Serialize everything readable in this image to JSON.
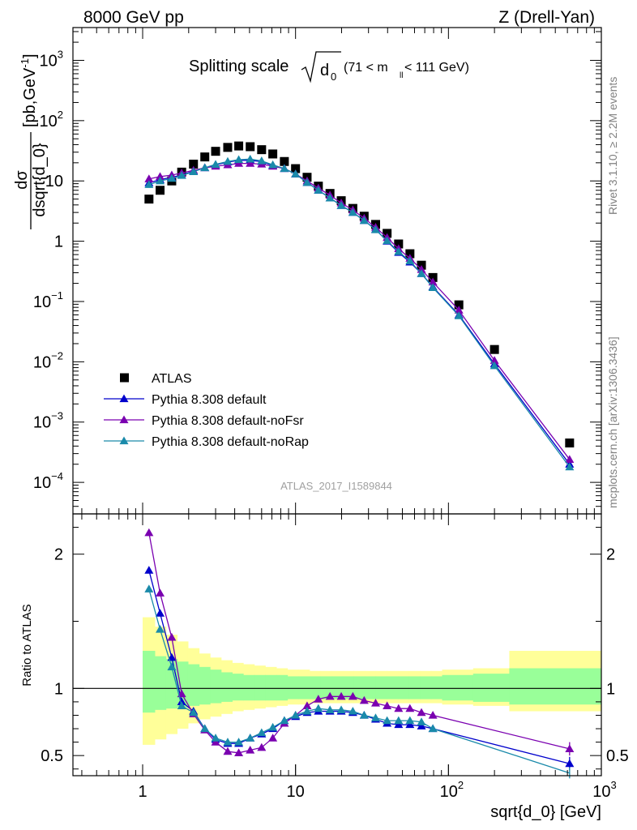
{
  "header": {
    "left": "8000 GeV pp",
    "right": "Z (Drell-Yan)"
  },
  "side_labels": {
    "rivet": "Rivet 3.1.10, ≥ 2.2M events",
    "mcplots": "mcplots.cern.ch [arXiv:1306.3436]"
  },
  "chart_data": [
    {
      "type": "scatter",
      "panel": "main",
      "title_main": "Splitting scale",
      "title_sym": "d",
      "title_sub": "0",
      "title_range_pre": "(71 < m",
      "title_range_sub": "ll",
      "title_range_post": " < 111 GeV)",
      "watermark": "ATLAS_2017_I1589844",
      "xscale": "log",
      "yscale": "log",
      "xlim": [
        0.35,
        1000
      ],
      "ylim": [
        3e-05,
        3500
      ],
      "ylabel_num": "dσ",
      "ylabel_den": "dsqrt{d_0}",
      "ylabel_unit": "[pb,GeV",
      "ylabel_unit_exp": "-1",
      "ylabel_unit_close": "]",
      "y_ticks": [
        {
          "v": 0.0001,
          "mant": "10",
          "exp": "−4"
        },
        {
          "v": 0.001,
          "mant": "10",
          "exp": "−3"
        },
        {
          "v": 0.01,
          "mant": "10",
          "exp": "−2"
        },
        {
          "v": 0.1,
          "mant": "10",
          "exp": "−1"
        },
        {
          "v": 1,
          "mant": "1",
          "exp": ""
        },
        {
          "v": 10,
          "mant": "10",
          "exp": ""
        },
        {
          "v": 100,
          "mant": "10",
          "exp": "2"
        },
        {
          "v": 1000,
          "mant": "10",
          "exp": "3"
        }
      ],
      "legend_position": "bottom-left",
      "x": [
        1.1,
        1.3,
        1.55,
        1.8,
        2.15,
        2.55,
        3.0,
        3.6,
        4.25,
        5.05,
        6.0,
        7.1,
        8.45,
        10.0,
        11.9,
        14.1,
        16.8,
        19.9,
        23.7,
        28.1,
        33.4,
        39.7,
        47.2,
        56.0,
        66.6,
        79.1,
        117,
        200,
        620
      ],
      "series": [
        {
          "name": "ATLAS",
          "color": "#000000",
          "marker": "square",
          "values": [
            5.0,
            7.0,
            10.0,
            14.0,
            19.0,
            25.0,
            31.0,
            36.0,
            38.0,
            37.0,
            33.0,
            28.0,
            21.0,
            16.0,
            11.5,
            8.2,
            6.2,
            4.7,
            3.5,
            2.6,
            1.9,
            1.35,
            0.9,
            0.62,
            0.4,
            0.25,
            0.088,
            0.016,
            0.00045
          ]
        },
        {
          "name": "Pythia 8.308 default",
          "color": "#0000cc",
          "marker": "triangle",
          "values": [
            9.3,
            10.5,
            11.5,
            12.5,
            14.5,
            16.5,
            18.5,
            20.5,
            22.0,
            22.0,
            21.0,
            18.0,
            16.0,
            13.0,
            9.4,
            7.0,
            5.2,
            3.9,
            3.0,
            2.2,
            1.57,
            1.0,
            0.65,
            0.45,
            0.29,
            0.175,
            0.06,
            0.0092,
            0.0002
          ]
        },
        {
          "name": "Pythia 8.308 default-noFsr",
          "color": "#7a00b0",
          "marker": "triangle",
          "values": [
            10.8,
            11.8,
            12.5,
            13.5,
            15.0,
            16.5,
            17.5,
            18.5,
            19.5,
            19.5,
            19.0,
            17.5,
            16.0,
            13.0,
            10.0,
            7.6,
            5.8,
            4.3,
            3.3,
            2.4,
            1.7,
            1.15,
            0.75,
            0.52,
            0.34,
            0.21,
            0.072,
            0.0105,
            0.00024
          ]
        },
        {
          "name": "Pythia 8.308 default-noRap",
          "color": "#1a8aaa",
          "marker": "triangle",
          "values": [
            8.7,
            10.0,
            11.0,
            12.3,
            14.2,
            16.5,
            18.8,
            21.0,
            22.5,
            23.0,
            21.5,
            18.5,
            16.0,
            13.0,
            9.4,
            7.0,
            5.2,
            3.9,
            3.0,
            2.2,
            1.55,
            1.02,
            0.67,
            0.47,
            0.29,
            0.17,
            0.058,
            0.0086,
            0.00018
          ]
        }
      ]
    },
    {
      "type": "line",
      "panel": "ratio",
      "ylabel": "Ratio to ATLAS",
      "xlabel": "sqrt{d_0} [GeV]",
      "xscale": "log",
      "xlim": [
        0.35,
        1000
      ],
      "ylim": [
        0.35,
        2.3
      ],
      "y_ticks": [
        {
          "v": 0.5,
          "label": "0.5"
        },
        {
          "v": 1,
          "label": "1"
        },
        {
          "v": 2,
          "label": "2"
        }
      ],
      "x_ticks": [
        {
          "v": 1,
          "mant": "1",
          "exp": ""
        },
        {
          "v": 10,
          "mant": "10",
          "exp": ""
        },
        {
          "v": 100,
          "mant": "10",
          "exp": "2"
        },
        {
          "v": 1000,
          "mant": "10",
          "exp": "3"
        }
      ],
      "reference_line": 1,
      "band_edges": [
        1.0,
        1.2,
        1.42,
        1.68,
        1.98,
        2.34,
        2.76,
        3.26,
        3.85,
        4.55,
        5.37,
        6.34,
        7.49,
        8.85,
        10.45,
        12.34,
        14.57,
        17.21,
        20.33,
        24.01,
        28.36,
        33.49,
        39.55,
        46.71,
        55.17,
        65.16,
        76.96,
        90.9,
        145,
        250,
        1000
      ],
      "band_green": [
        [
          0.82,
          1.28
        ],
        [
          0.84,
          1.24
        ],
        [
          0.85,
          1.22
        ],
        [
          0.86,
          1.2
        ],
        [
          0.87,
          1.18
        ],
        [
          0.88,
          1.16
        ],
        [
          0.89,
          1.14
        ],
        [
          0.9,
          1.12
        ],
        [
          0.91,
          1.11
        ],
        [
          0.91,
          1.1
        ],
        [
          0.91,
          1.1
        ],
        [
          0.91,
          1.1
        ],
        [
          0.91,
          1.1
        ],
        [
          0.92,
          1.09
        ],
        [
          0.92,
          1.09
        ],
        [
          0.92,
          1.09
        ],
        [
          0.92,
          1.09
        ],
        [
          0.92,
          1.09
        ],
        [
          0.92,
          1.09
        ],
        [
          0.92,
          1.09
        ],
        [
          0.92,
          1.09
        ],
        [
          0.92,
          1.09
        ],
        [
          0.92,
          1.09
        ],
        [
          0.92,
          1.09
        ],
        [
          0.92,
          1.09
        ],
        [
          0.92,
          1.09
        ],
        [
          0.92,
          1.09
        ],
        [
          0.91,
          1.1
        ],
        [
          0.9,
          1.11
        ],
        [
          0.88,
          1.15
        ]
      ],
      "band_yellow": [
        [
          0.58,
          1.53
        ],
        [
          0.62,
          1.46
        ],
        [
          0.66,
          1.4
        ],
        [
          0.7,
          1.35
        ],
        [
          0.74,
          1.3
        ],
        [
          0.77,
          1.26
        ],
        [
          0.79,
          1.23
        ],
        [
          0.81,
          1.21
        ],
        [
          0.83,
          1.19
        ],
        [
          0.84,
          1.18
        ],
        [
          0.85,
          1.17
        ],
        [
          0.86,
          1.16
        ],
        [
          0.87,
          1.15
        ],
        [
          0.88,
          1.14
        ],
        [
          0.88,
          1.14
        ],
        [
          0.89,
          1.13
        ],
        [
          0.89,
          1.13
        ],
        [
          0.89,
          1.13
        ],
        [
          0.89,
          1.13
        ],
        [
          0.89,
          1.13
        ],
        [
          0.89,
          1.13
        ],
        [
          0.89,
          1.13
        ],
        [
          0.89,
          1.13
        ],
        [
          0.89,
          1.13
        ],
        [
          0.89,
          1.13
        ],
        [
          0.89,
          1.13
        ],
        [
          0.89,
          1.13
        ],
        [
          0.88,
          1.14
        ],
        [
          0.87,
          1.15
        ],
        [
          0.83,
          1.28
        ]
      ],
      "x": [
        1.1,
        1.3,
        1.55,
        1.8,
        2.15,
        2.55,
        3.0,
        3.6,
        4.25,
        5.05,
        6.0,
        7.1,
        8.45,
        10.0,
        11.9,
        14.1,
        16.8,
        19.9,
        23.7,
        28.1,
        33.4,
        39.7,
        47.2,
        56.0,
        66.6,
        79.1,
        620
      ],
      "series": [
        {
          "name": "Pythia 8.308 default",
          "color": "#0000cc",
          "values": [
            1.88,
            1.56,
            1.23,
            0.9,
            0.83,
            0.7,
            0.62,
            0.59,
            0.59,
            0.63,
            0.66,
            0.7,
            0.76,
            0.79,
            0.82,
            0.83,
            0.83,
            0.83,
            0.82,
            0.8,
            0.77,
            0.74,
            0.73,
            0.73,
            0.72,
            0.7,
            0.44
          ]
        },
        {
          "name": "Pythia 8.308 default-noFsr",
          "color": "#7a00b0",
          "values": [
            2.16,
            1.71,
            1.38,
            0.96,
            0.81,
            0.69,
            0.6,
            0.53,
            0.52,
            0.54,
            0.56,
            0.63,
            0.74,
            0.8,
            0.87,
            0.92,
            0.94,
            0.94,
            0.94,
            0.91,
            0.89,
            0.87,
            0.85,
            0.85,
            0.82,
            0.8,
            0.55
          ]
        },
        {
          "name": "Pythia 8.308 default-noRap",
          "color": "#1a8aaa",
          "values": [
            1.74,
            1.44,
            1.16,
            0.87,
            0.82,
            0.7,
            0.63,
            0.6,
            0.6,
            0.63,
            0.67,
            0.71,
            0.76,
            0.8,
            0.83,
            0.85,
            0.84,
            0.84,
            0.83,
            0.8,
            0.78,
            0.76,
            0.76,
            0.76,
            0.75,
            0.7,
            0.37
          ]
        }
      ]
    }
  ]
}
